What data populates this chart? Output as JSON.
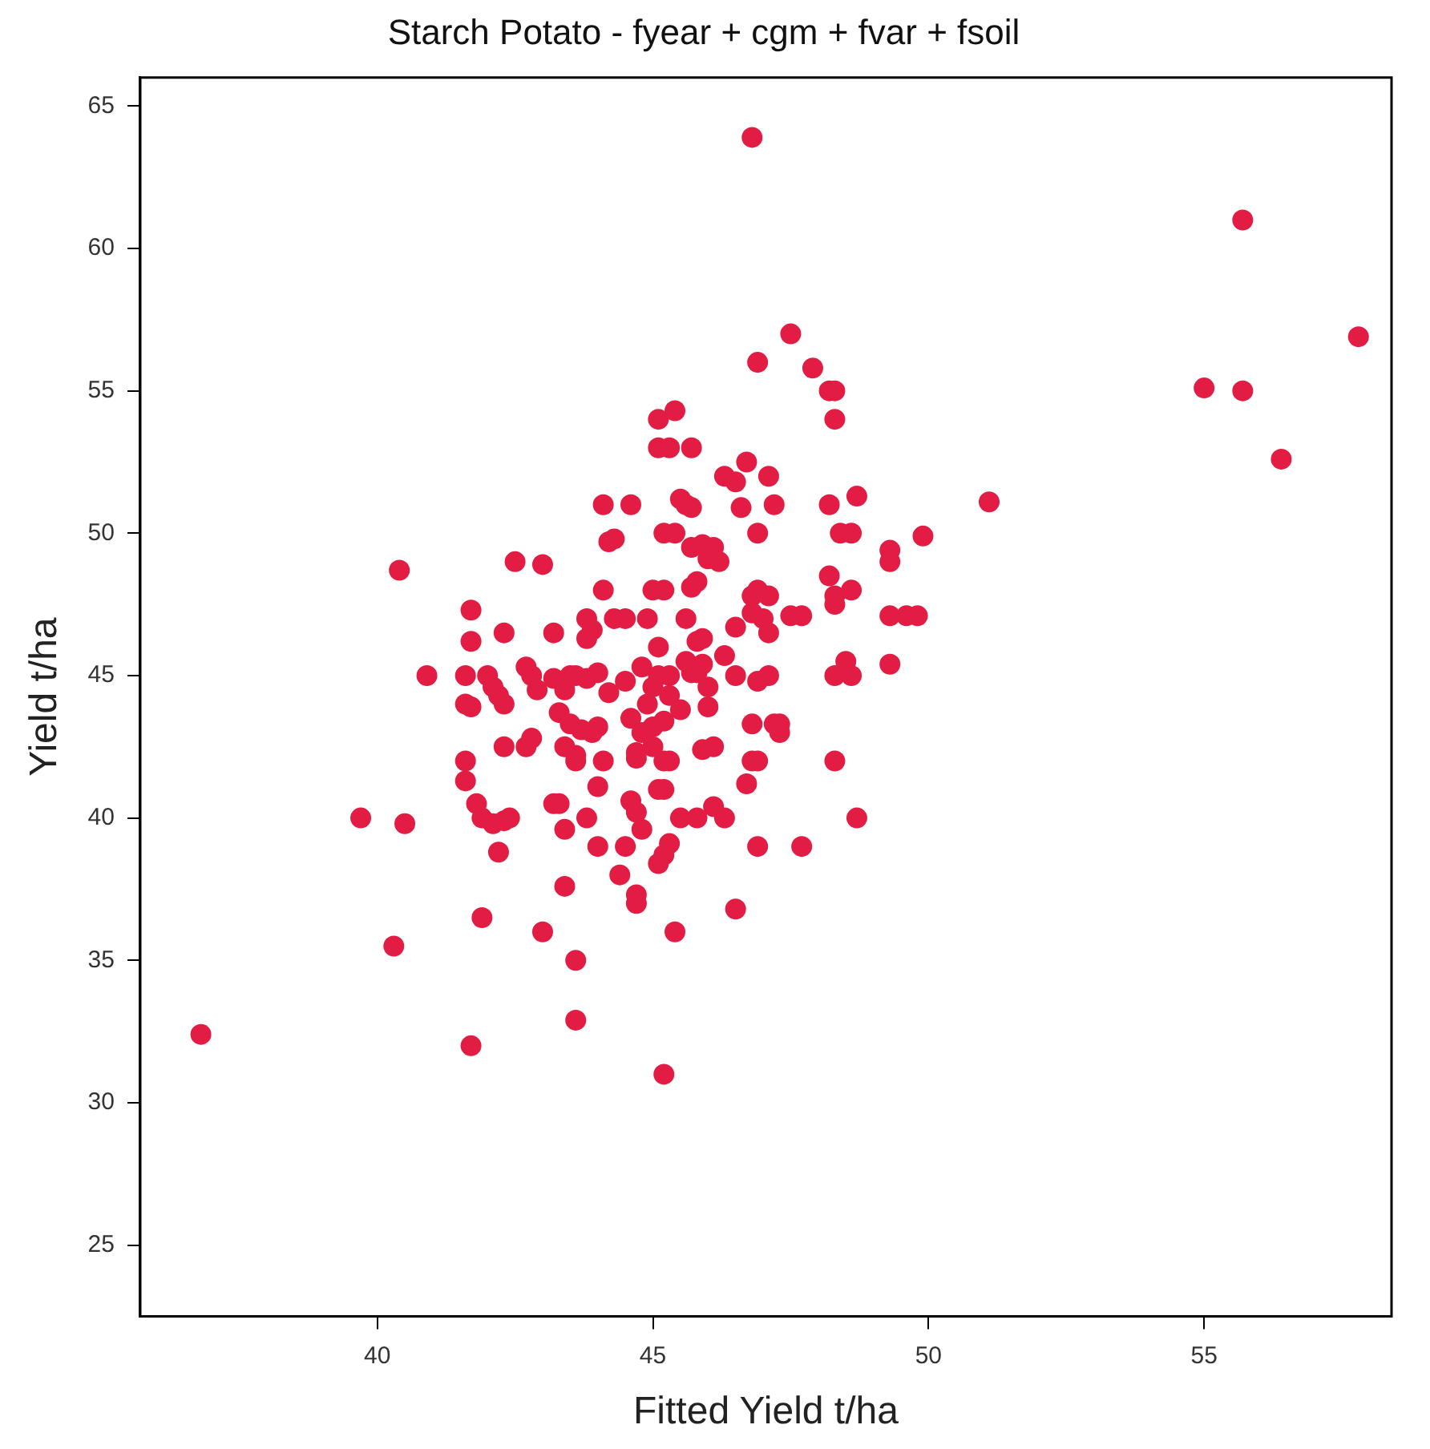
{
  "chart_data": {
    "type": "scatter",
    "title": "Starch Potato - fyear + cgm + fvar + fsoil",
    "xlabel": "Fitted Yield t/ha",
    "ylabel": "Yield t/ha",
    "xlim": [
      35.7,
      58.4
    ],
    "ylim": [
      22.5,
      66
    ],
    "xticks": [
      40,
      45,
      50,
      55
    ],
    "yticks": [
      25,
      30,
      35,
      40,
      45,
      50,
      55,
      60,
      65
    ],
    "grid": false,
    "legend": false,
    "marker": "circle",
    "series": [
      {
        "color": "#e31c44",
        "x": [
          36.8,
          39.7,
          40.3,
          40.4,
          40.5,
          41.7,
          41.9,
          43,
          43.6,
          43.6,
          45.2,
          45.4,
          46.5,
          46.8,
          55.7,
          55,
          55.7,
          57.8,
          56.4,
          51.1,
          49.9,
          49.3,
          49.3,
          49.3,
          49.6,
          49.8,
          49.3,
          48.7,
          48.6,
          48.4,
          48.2,
          48.2,
          48.3,
          48.3,
          48.6,
          48.3,
          48.5,
          48.6,
          48.3,
          48.7,
          47.7,
          46.9,
          47.9,
          48.2,
          48.3,
          48.3,
          47.5,
          46.9,
          47.1,
          46.9,
          47.2,
          46.7,
          46.3,
          46.5,
          46.6,
          46.9,
          47.1,
          46.8,
          47,
          47.1,
          47.5,
          47.7,
          46.8,
          46.5,
          46.3,
          46.5,
          47.1,
          46.9,
          47.2,
          47.3,
          47.3,
          46.8,
          46.8,
          46.9,
          46.7,
          46.3,
          46.1,
          45.8,
          45.5,
          45.3,
          45.2,
          45,
          45.2,
          45.1,
          45.3,
          45.2,
          45.1,
          44.7,
          44.7,
          44.4,
          44.5,
          44.8,
          44.7,
          44.6,
          44,
          43.8,
          43.4,
          43.2,
          43.3,
          43.4,
          42.8,
          42.7,
          42.3,
          42.1,
          42.2,
          42.3,
          42.4,
          41.8,
          41.9,
          41.6,
          41.6,
          41.7,
          41.6,
          41.6,
          41.7,
          41.7,
          40.9,
          42,
          42.1,
          42.2,
          42.3,
          42.3,
          42.5,
          42.8,
          42.7,
          42.9,
          43,
          43.2,
          43.2,
          43.3,
          43.4,
          43.5,
          43.4,
          43.5,
          43.6,
          43.6,
          43.7,
          43.8,
          43.8,
          43.8,
          43.9,
          44,
          44,
          44,
          44.1,
          44.2,
          44.1,
          44.2,
          44.3,
          44.1,
          44.3,
          44.5,
          44.5,
          44.6,
          44.8,
          44.7,
          44.7,
          44.8,
          44.9,
          45,
          45.1,
          45.1,
          45.3,
          45.3,
          45.2,
          45,
          45.5,
          45.7,
          45.6,
          45.8,
          45.9,
          45.8,
          45.9,
          46,
          46,
          45.9,
          46.1,
          45.2,
          45.2,
          45.4,
          45.5,
          45.6,
          45.7,
          45.7,
          45.9,
          46,
          46.1,
          46.2,
          45.8,
          45.6,
          45.7,
          44.9,
          45,
          45.1,
          45.3,
          45.1,
          45.4,
          45.7,
          44.6,
          43.6,
          43.9
        ],
        "values": [
          32.4,
          40,
          35.5,
          48.7,
          39.8,
          32,
          36.5,
          36,
          35,
          32.9,
          31,
          36,
          36.8,
          63.9,
          61,
          55.1,
          55,
          56.9,
          52.6,
          51.1,
          49.9,
          49.4,
          49,
          47.1,
          47.1,
          47.1,
          45.4,
          51.3,
          50,
          50,
          51,
          48.5,
          47.8,
          47.5,
          48,
          45,
          45.5,
          45,
          42,
          40,
          39,
          39,
          55.8,
          55,
          55,
          54,
          57,
          56,
          52,
          50,
          51,
          52.5,
          52,
          51.8,
          50.9,
          48,
          47.8,
          47.8,
          47,
          46.5,
          47.1,
          47.1,
          47.2,
          46.7,
          45.7,
          45,
          45,
          44.8,
          43.3,
          43.3,
          43,
          43.3,
          42,
          42,
          41.2,
          40,
          40.4,
          40,
          40,
          42,
          42,
          42.5,
          41,
          41,
          39.1,
          38.7,
          38.4,
          37.3,
          37,
          38,
          39,
          39.6,
          40.2,
          40.6,
          39,
          40,
          39.6,
          40.5,
          40.5,
          37.6,
          42.8,
          42.5,
          42.5,
          39.8,
          38.8,
          39.9,
          40,
          40.5,
          40,
          41.3,
          42,
          43.9,
          44,
          45,
          46.2,
          47.3,
          45,
          45,
          44.6,
          44.3,
          44,
          46.5,
          49,
          45,
          45.3,
          44.5,
          48.9,
          46.5,
          44.9,
          43.7,
          44.5,
          45,
          42.5,
          43.3,
          42.2,
          42,
          43.1,
          44.9,
          46.3,
          47,
          46.6,
          45.1,
          43.2,
          41.1,
          42,
          44.4,
          48,
          49.7,
          49.8,
          51,
          47,
          47,
          44.8,
          43.5,
          45.3,
          42.3,
          42.1,
          43,
          44,
          44.6,
          45,
          46,
          45,
          44.3,
          43.4,
          43.2,
          43.8,
          45.1,
          45.5,
          45.1,
          45.4,
          46.2,
          46.3,
          44.6,
          43.9,
          42.4,
          42.5,
          48,
          50,
          50,
          51.2,
          51,
          50.9,
          49.5,
          49.6,
          49.1,
          49.5,
          49,
          48.3,
          47,
          48.1,
          47,
          48,
          53,
          53,
          54,
          54.3,
          53,
          51,
          45,
          43
        ]
      }
    ]
  }
}
